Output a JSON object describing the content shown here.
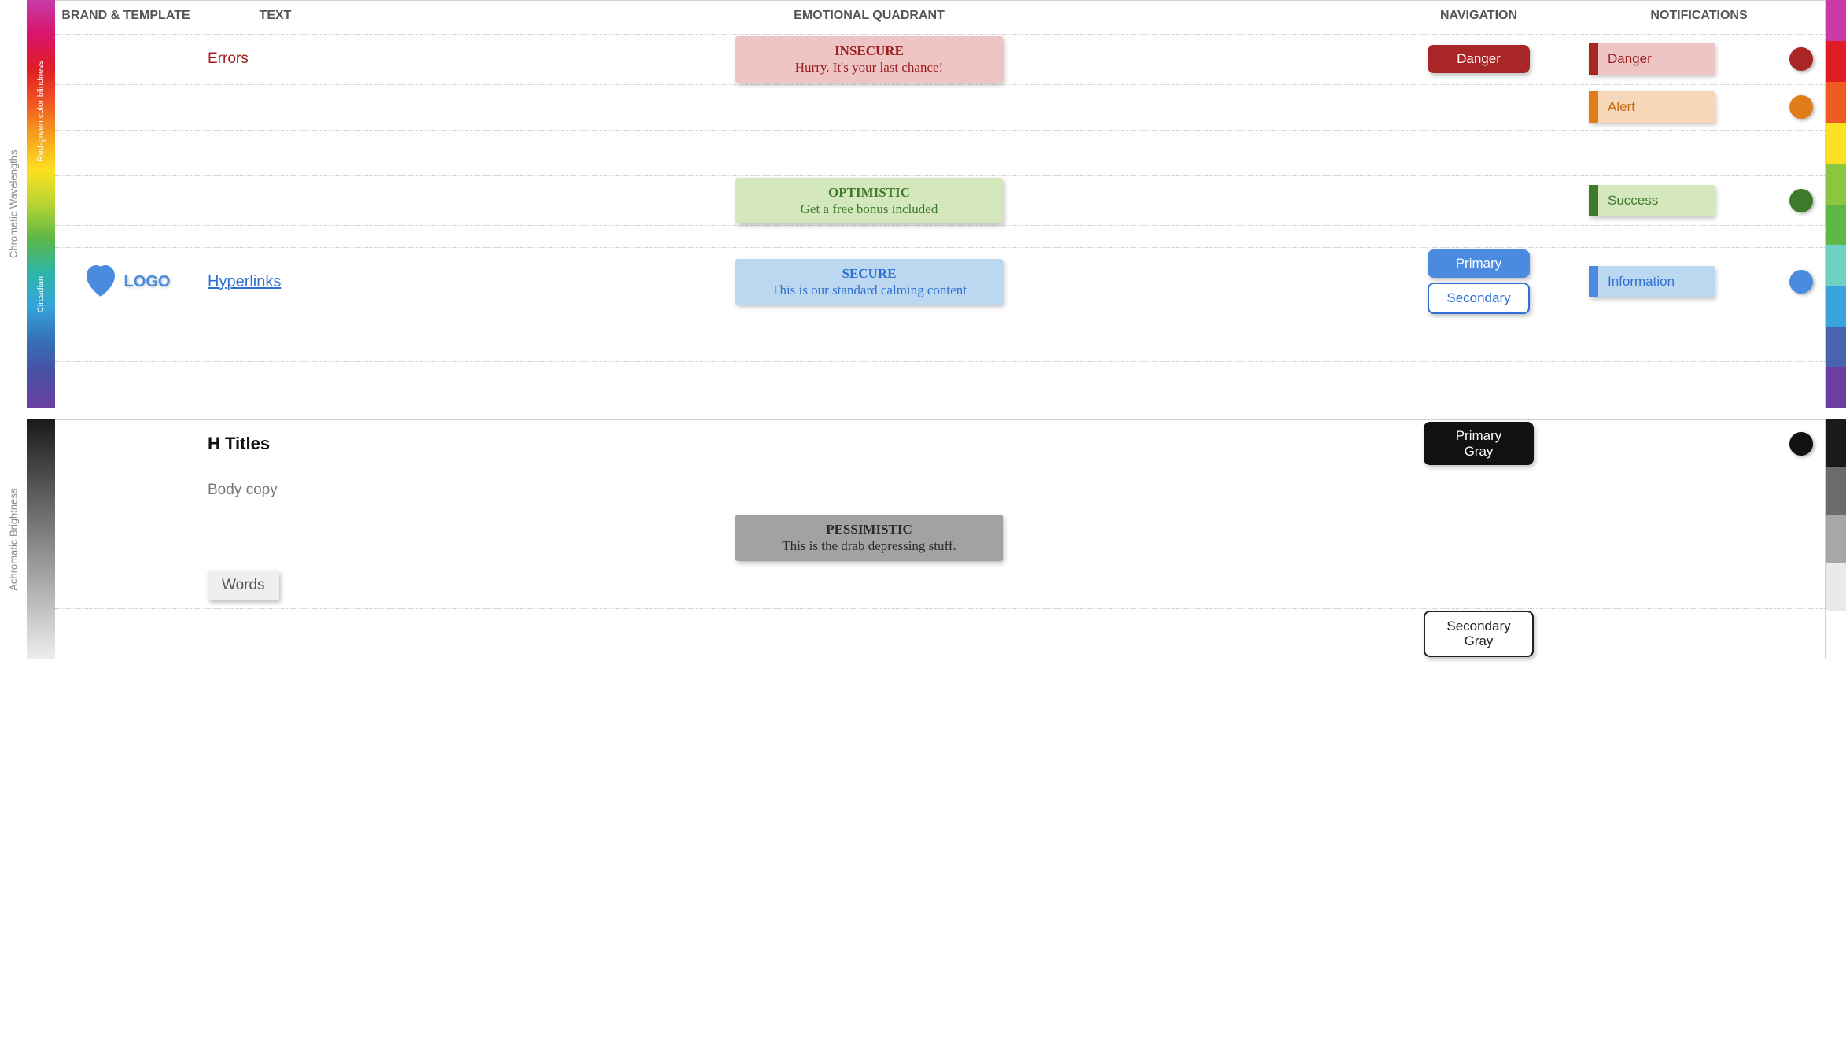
{
  "axis": {
    "chromatic_label": "Chromatic Wavelengths",
    "achromatic_label": "Achromatic Brightness",
    "redgreen_label": "Red-green color blindness",
    "circadian_label": "Circadian"
  },
  "headers": {
    "brand": "BRAND & TEMPLATE",
    "text": "TEXT",
    "emotion": "EMOTIONAL QUADRANT",
    "navigation": "NAVIGATION",
    "notifications": "NOTIFICATIONS"
  },
  "left_gradient_stops": [
    "#c73aa8",
    "#d9156d",
    "#e01c25",
    "#f05423",
    "#f6a21d",
    "#fde021",
    "#b7d433",
    "#5eb747",
    "#2db6a6",
    "#34a4db",
    "#3670b6",
    "#4a4fa3",
    "#6a3fa0"
  ],
  "left_gray_stops": [
    "#1a1a1a",
    "#eeeeee"
  ],
  "right_bar": [
    {
      "color": "#c73aa8"
    },
    {
      "color": "#e01c25"
    },
    {
      "color": "#f05a23"
    },
    {
      "color": "#fde021"
    },
    {
      "color": "#8cc63f"
    },
    {
      "color": "#5eb747"
    },
    {
      "color": "#6fd1c4"
    },
    {
      "color": "#38a4db"
    },
    {
      "color": "#4a63b0"
    },
    {
      "color": "#6a3fa0"
    }
  ],
  "right_gray_bar": [
    {
      "color": "#1a1a1a"
    },
    {
      "color": "#6b6b6b"
    },
    {
      "color": "#a7a7a7"
    },
    {
      "color": "#eaeaea"
    },
    {
      "color": "#ffffff"
    }
  ],
  "rows": {
    "chromatic": [
      {
        "text": {
          "label": "Errors",
          "color": "#a21f1f"
        },
        "emotion": {
          "title": "INSECURE",
          "sub": "Hurry. It's your last chance!",
          "bg": "#eec4c4",
          "fg": "#9a1d1d"
        },
        "nav": [
          {
            "label": "Danger",
            "bg": "#a82626",
            "fg": "#ffffff"
          }
        ],
        "notif": {
          "label": "Danger",
          "bg": "#eec4c4",
          "bar": "#a82626",
          "fg": "#9a1d1d"
        },
        "dot": "#a82626"
      },
      {
        "notif": {
          "label": "Alert",
          "bg": "#f6d7b7",
          "bar": "#e07c1a",
          "fg": "#c76a12"
        },
        "dot": "#e07c1a"
      },
      {
        "spacer": true
      },
      {
        "emotion": {
          "title": "OPTIMISTIC",
          "sub": "Get a free bonus included",
          "bg": "#d5e8bd",
          "fg": "#3f7a2c"
        },
        "notif": {
          "label": "Success",
          "bg": "#d5e8bd",
          "bar": "#3f7a2c",
          "fg": "#3f7a2c"
        },
        "dot": "#3f7a2c"
      },
      {
        "spacer": true,
        "short": true
      },
      {
        "brand": {
          "logo": "LOGO",
          "logo_color": "#4a8be0",
          "heart": "#4a8be0"
        },
        "text": {
          "label": "Hyperlinks",
          "color": "#2f6fd0",
          "link": true
        },
        "emotion": {
          "title": "SECURE",
          "sub": "This is our standard calming content",
          "bg": "#bcd8f0",
          "fg": "#2f6fd0"
        },
        "nav": [
          {
            "label": "Primary",
            "bg": "#4a8be0",
            "fg": "#ffffff"
          },
          {
            "label": "Secondary",
            "bg": "#ffffff",
            "fg": "#2f6fd0",
            "border": "#2f6fd0"
          }
        ],
        "notif": {
          "label": "Information",
          "bg": "#bcd8f0",
          "bar": "#4a8be0",
          "fg": "#2f6fd0"
        },
        "dot": "#4a8be0"
      },
      {
        "spacer": true
      },
      {
        "spacer": true
      }
    ],
    "achromatic": [
      {
        "text": {
          "label": "H Titles",
          "style": "htitles"
        },
        "nav": [
          {
            "label": "Primary Gray",
            "bg": "#111111",
            "fg": "#ffffff",
            "wrap": true
          }
        ],
        "dot": "#111111"
      },
      {
        "text": {
          "label": "Body copy",
          "style": "body-copy"
        },
        "nodotted": true
      },
      {
        "emotion": {
          "title": "PESSIMISTIC",
          "sub": "This is the drab depressing stuff.",
          "bg": "#a2a2a2",
          "fg": "#2b2b2b"
        }
      },
      {
        "text": {
          "label": "Words",
          "style": "words",
          "bg": "#efefef"
        }
      },
      {
        "nav": [
          {
            "label": "Secondary Gray",
            "bg": "#ffffff",
            "fg": "#222222",
            "border": "#222222",
            "wrap": true
          }
        ],
        "nodotted": true
      }
    ]
  }
}
